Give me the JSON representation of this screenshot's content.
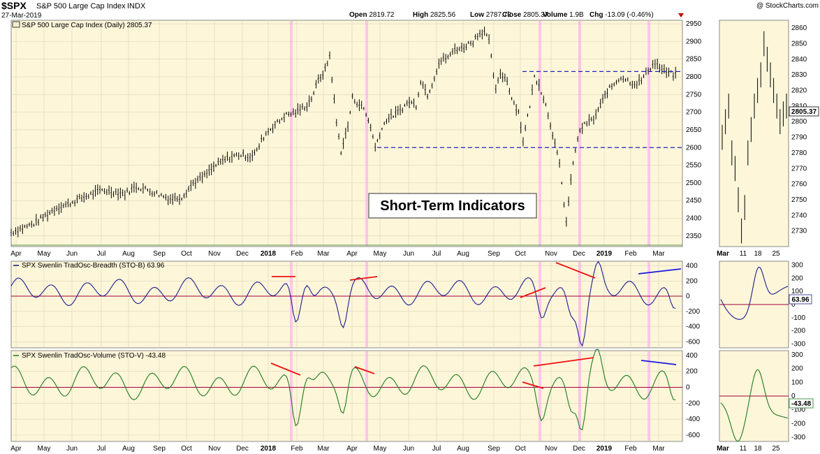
{
  "header": {
    "symbol": "$SPX",
    "name": "S&P 500 Large Cap Index",
    "exchange": "INDX",
    "date": "27-Mar-2019",
    "watermark": "@ StockCharts.com",
    "quote": [
      {
        "label": "Open",
        "value": "2819.72"
      },
      {
        "label": "High",
        "value": "2825.56"
      },
      {
        "label": "Low",
        "value": "2787.72"
      },
      {
        "label": "Close",
        "value": "2805.37"
      },
      {
        "label": "Volume",
        "value": "1.9B"
      },
      {
        "label": "Chg",
        "value": "-13.09 (-0.46%)"
      }
    ]
  },
  "colors": {
    "panel_bg": "#fdf6d9",
    "outer_bg": "#ffffff",
    "highlight": "#ff9ef4",
    "breadth_line": "#1c1c8c",
    "volume_line": "#1f7a1f",
    "zero_line": "#a0003c",
    "trend_red": "#ee1111",
    "trend_blue": "#1a1ae0",
    "dashed": "#2222bb",
    "price_bar": "#000000",
    "down_arrow": "#c00000"
  },
  "annotation": "Short-Term Indicators",
  "chart_data": [
    {
      "type": "line",
      "panel": "price",
      "title": "S&P 500 Large Cap Index (Daily) 2805.37",
      "last_value": "2805.37",
      "x_labels": [
        "Apr",
        "May",
        "Jun",
        "Jul",
        "Aug",
        "Sep",
        "Oct",
        "Nov",
        "Dec",
        "2018",
        "Feb",
        "Mar",
        "Apr",
        "May",
        "Jun",
        "Jul",
        "Aug",
        "Sep",
        "Oct",
        "Nov",
        "Dec",
        "2019",
        "Feb",
        "Mar"
      ],
      "y_ticks": [
        2350,
        2400,
        2450,
        2500,
        2550,
        2600,
        2650,
        2700,
        2750,
        2800,
        2850,
        2900,
        2950
      ],
      "ylim": [
        2320,
        2960
      ],
      "series": [
        {
          "x": [
            0,
            10,
            20,
            25,
            30,
            40,
            50,
            55,
            60,
            70,
            75,
            80,
            85,
            90,
            95,
            100,
            105,
            108,
            110,
            112,
            115,
            118,
            120,
            125,
            130,
            132,
            135,
            138,
            140,
            143,
            145,
            148,
            150,
            155,
            158,
            160,
            162,
            165,
            170,
            175,
            178,
            180,
            183,
            185,
            188,
            190,
            193,
            195,
            198,
            200,
            203,
            205,
            208,
            210,
            213,
            215,
            218,
            220,
            223,
            225,
            228,
            230,
            232,
            235,
            238,
            241,
            244,
            247,
            250
          ],
          "values": [
            2360,
            2385,
            2430,
            2440,
            2455,
            2480,
            2470,
            2490,
            2480,
            2455,
            2460,
            2500,
            2520,
            2550,
            2570,
            2580,
            2575,
            2590,
            2620,
            2640,
            2660,
            2675,
            2690,
            2700,
            2720,
            2740,
            2790,
            2820,
            2860,
            2670,
            2590,
            2660,
            2740,
            2710,
            2660,
            2600,
            2640,
            2680,
            2700,
            2730,
            2720,
            2790,
            2750,
            2780,
            2840,
            2850,
            2860,
            2880,
            2880,
            2890,
            2900,
            2920,
            2930,
            2900,
            2760,
            2810,
            2790,
            2740,
            2700,
            2620,
            2720,
            2800,
            2780,
            2720,
            2640,
            2550,
            2390,
            2560,
            2650
          ]
        },
        {
          "x": [
            250,
            253,
            256,
            259,
            262,
            265,
            268,
            271,
            274,
            277,
            280,
            283,
            286,
            289,
            292
          ],
          "values": [
            2650,
            2670,
            2680,
            2720,
            2760,
            2780,
            2800,
            2790,
            2780,
            2790,
            2820,
            2840,
            2820,
            2810,
            2805
          ]
        }
      ],
      "levels": [
        {
          "value": 2600,
          "style": "dashed"
        },
        {
          "value": 2815,
          "style": "dashed"
        }
      ]
    },
    {
      "type": "line",
      "panel": "breadth",
      "title": "SPX Swenlin TradOsc-Breadth (STO-B) 63.96",
      "last_value": "63.96",
      "y_ticks": [
        400,
        200,
        0,
        -200,
        -400,
        -600
      ],
      "ylim": [
        -680,
        460
      ]
    },
    {
      "type": "line",
      "panel": "volume",
      "title": "SPX Swenlin TradOsc-Volume (STO-V) -43.48",
      "last_value": "-43.48",
      "y_ticks": [
        400,
        200,
        0,
        -200,
        -400,
        -600
      ],
      "ylim": [
        -680,
        460
      ],
      "x_labels": [
        "Apr",
        "May",
        "Jun",
        "Jul",
        "Aug",
        "Sep",
        "Oct",
        "Nov",
        "Dec",
        "2018",
        "Feb",
        "Mar",
        "Apr",
        "May",
        "Jun",
        "Jul",
        "Aug",
        "Sep",
        "Oct",
        "Nov",
        "Dec",
        "2019",
        "Feb",
        "Mar"
      ]
    },
    {
      "type": "line",
      "panel": "price-zoom",
      "y_ticks": [
        2730,
        2740,
        2750,
        2760,
        2770,
        2780,
        2790,
        2800,
        2810,
        2820,
        2830,
        2840,
        2850,
        2860
      ],
      "ylim": [
        2720,
        2865
      ],
      "x_labels": [
        "Mar",
        "11",
        "18",
        "25"
      ]
    },
    {
      "type": "line",
      "panel": "breadth-zoom",
      "y_ticks": [
        300,
        200,
        100,
        0,
        -100,
        -200,
        -300
      ],
      "ylim": [
        -330,
        330
      ]
    },
    {
      "type": "line",
      "panel": "volume-zoom",
      "y_ticks": [
        300,
        200,
        100,
        0,
        -100,
        -200,
        -300
      ],
      "ylim": [
        -330,
        330
      ],
      "x_labels": [
        "Mar",
        "11",
        "18",
        "25"
      ]
    }
  ]
}
